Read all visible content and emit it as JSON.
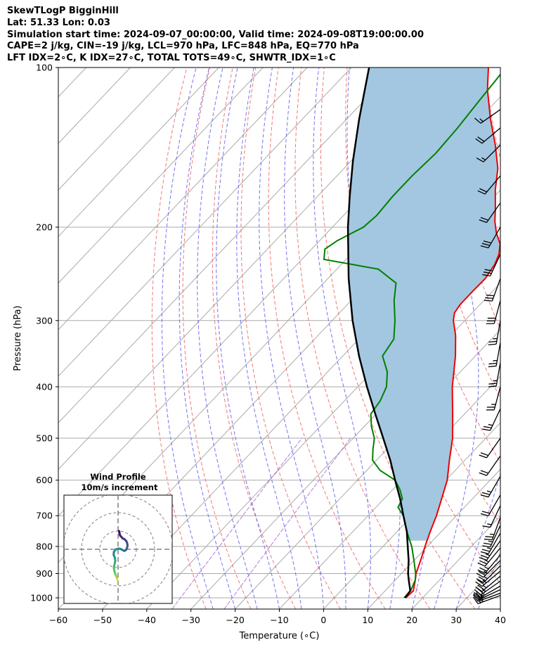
{
  "header": {
    "line1": "SkewTLogP BigginHill",
    "line2": "Lat: 51.33   Lon: 0.03",
    "line3": "Simulation start time: 2024-09-07_00:00:00, Valid time: 2024-09-08T19:00:00.00",
    "line4": "CAPE=2 j/kg, CIN=-19 j/kg, LCL=970 hPa, LFC=848 hPa, EQ=770 hPa",
    "line5": "LFT IDX=2∘C, K IDX=27∘C, TOTAL TOTS=49∘C, SHWTR_IDX=1∘C"
  },
  "chart_data": {
    "type": "line",
    "xlabel": "Temperature (∘C)",
    "ylabel": "Pressure (hPa)",
    "xlim": [
      -60,
      40
    ],
    "ylim": [
      1050,
      100
    ],
    "y_scale": "log",
    "skew": true,
    "x_ticks": [
      -60,
      -50,
      -40,
      -30,
      -20,
      -10,
      0,
      10,
      20,
      30,
      40
    ],
    "x_tick_labels": [
      "−60",
      "−50",
      "−40",
      "−30",
      "−20",
      "−10",
      "0",
      "10",
      "20",
      "30",
      "40"
    ],
    "y_ticks": [
      1000,
      900,
      800,
      700,
      600,
      500,
      400,
      300,
      200,
      100
    ],
    "y_tick_labels": [
      "1000",
      "900",
      "800",
      "700",
      "600",
      "500",
      "400",
      "300",
      "200",
      "100"
    ],
    "grid": true,
    "colors": {
      "temperature": "#ee0000",
      "dewpoint": "#008000",
      "parcel": "#000000",
      "cape_fill": "#a3c7e0",
      "dry_adiabat": "#f06060",
      "moist_adiabat": "#5c5cf0",
      "mixing_ratio": "#b06ad8",
      "isotherm": "#aaaaaa"
    },
    "series": [
      {
        "values": [
          [
            1000,
            16.2
          ],
          [
            970,
            16.4
          ],
          [
            925,
            14.5
          ],
          [
            900,
            13.3
          ],
          [
            850,
            11.5
          ],
          [
            800,
            9.5
          ],
          [
            750,
            7.5
          ],
          [
            700,
            5.5
          ],
          [
            650,
            3.0
          ],
          [
            600,
            0.3
          ],
          [
            550,
            -3.5
          ],
          [
            500,
            -7.5
          ],
          [
            450,
            -12.7
          ],
          [
            400,
            -18.6
          ],
          [
            350,
            -24.5
          ],
          [
            320,
            -28.9
          ],
          [
            300,
            -32.6
          ],
          [
            290,
            -34.0
          ],
          [
            280,
            -34.5
          ],
          [
            265,
            -34.5
          ],
          [
            250,
            -34.4
          ],
          [
            235,
            -35.3
          ],
          [
            225,
            -36.5
          ],
          [
            215,
            -38.5
          ],
          [
            205,
            -41.7
          ],
          [
            195,
            -44.5
          ],
          [
            185,
            -47.0
          ],
          [
            170,
            -51.2
          ],
          [
            155,
            -55.2
          ],
          [
            140,
            -60.8
          ],
          [
            125,
            -67.5
          ],
          [
            110,
            -74.5
          ],
          [
            100,
            -79.0
          ]
        ]
      },
      {
        "values": [
          [
            1000,
            15.8
          ],
          [
            970,
            15.8
          ],
          [
            925,
            14.5
          ],
          [
            900,
            13.2
          ],
          [
            850,
            10.0
          ],
          [
            800,
            6.5
          ],
          [
            750,
            2.2
          ],
          [
            700,
            -2.0
          ],
          [
            675,
            -5.0
          ],
          [
            650,
            -5.9
          ],
          [
            625,
            -8.4
          ],
          [
            600,
            -11.5
          ],
          [
            575,
            -17.0
          ],
          [
            550,
            -20.9
          ],
          [
            525,
            -23.1
          ],
          [
            500,
            -25.2
          ],
          [
            475,
            -28.4
          ],
          [
            450,
            -31.2
          ],
          [
            425,
            -31.9
          ],
          [
            400,
            -33.5
          ],
          [
            375,
            -36.5
          ],
          [
            350,
            -41.0
          ],
          [
            325,
            -42.1
          ],
          [
            300,
            -45.8
          ],
          [
            275,
            -50.3
          ],
          [
            255,
            -53.6
          ],
          [
            240,
            -60.6
          ],
          [
            230,
            -75.0
          ],
          [
            220,
            -77.0
          ],
          [
            212,
            -76.0
          ],
          [
            200,
            -73.0
          ],
          [
            190,
            -72.5
          ],
          [
            175,
            -73.0
          ],
          [
            160,
            -73.0
          ],
          [
            145,
            -72.5
          ],
          [
            130,
            -73.0
          ],
          [
            115,
            -74.0
          ],
          [
            100,
            -75.0
          ]
        ]
      },
      {
        "values": [
          [
            1000,
            16.0
          ],
          [
            970,
            15.7
          ],
          [
            925,
            13.0
          ],
          [
            900,
            11.5
          ],
          [
            850,
            8.8
          ],
          [
            800,
            5.6
          ],
          [
            750,
            2.2
          ],
          [
            700,
            -2.0
          ],
          [
            650,
            -6.4
          ],
          [
            600,
            -11.5
          ],
          [
            550,
            -16.9
          ],
          [
            500,
            -23.2
          ],
          [
            450,
            -30.2
          ],
          [
            400,
            -37.9
          ],
          [
            350,
            -46.3
          ],
          [
            300,
            -55.4
          ],
          [
            250,
            -65.3
          ],
          [
            200,
            -76.5
          ],
          [
            175,
            -82.7
          ],
          [
            150,
            -89.6
          ],
          [
            125,
            -97.2
          ],
          [
            100,
            -106.0
          ]
        ]
      }
    ],
    "wind_barbs": {
      "pressures": [
        990,
        980,
        965,
        950,
        930,
        910,
        890,
        870,
        850,
        830,
        805,
        780,
        755,
        730,
        705,
        670,
        640,
        590,
        540,
        500,
        440,
        400,
        360,
        330,
        300,
        275,
        250,
        225,
        200,
        180,
        160,
        140,
        130,
        120
      ],
      "speed_kt": [
        30,
        25,
        25,
        25,
        25,
        25,
        25,
        25,
        25,
        25,
        25,
        25,
        25,
        25,
        25,
        15,
        20,
        25,
        20,
        20,
        25,
        25,
        25,
        25,
        25,
        30,
        30,
        30,
        30,
        20,
        20,
        15,
        20,
        15
      ],
      "direction_deg": [
        250,
        250,
        245,
        240,
        235,
        230,
        230,
        225,
        225,
        220,
        220,
        215,
        210,
        205,
        200,
        205,
        210,
        210,
        215,
        215,
        205,
        195,
        190,
        190,
        190,
        195,
        200,
        205,
        210,
        215,
        220,
        225,
        230,
        235
      ]
    },
    "hodograph": {
      "title": "Wind Profile",
      "subtitle": "10m/s increment",
      "u": [
        0.5,
        0.7,
        0.9,
        1.1,
        1.6,
        2.5,
        3.5,
        4.5,
        5.0,
        5.2,
        4.9,
        4.3,
        3.4,
        2.3,
        1.3,
        0.5,
        -0.5,
        -1.5,
        -2.3,
        -2.4,
        -1.8,
        -1.5,
        -1.7,
        -2.0,
        -2.3,
        -2.0,
        -1.5,
        -1.0,
        -0.6,
        -0.5,
        -0.4,
        -0.3
      ],
      "v": [
        10.0,
        9.2,
        8.4,
        7.5,
        7.0,
        6.0,
        5.5,
        4.5,
        3.3,
        2.0,
        0.8,
        -0.4,
        -0.9,
        -0.3,
        0.2,
        0.4,
        0.2,
        -0.3,
        -1.5,
        -3.1,
        -4.5,
        -6.2,
        -7.3,
        -8.5,
        -10.2,
        -12.0,
        -13.5,
        -14.7,
        -15.6,
        -16.2,
        -16.6,
        -17.0
      ]
    }
  }
}
